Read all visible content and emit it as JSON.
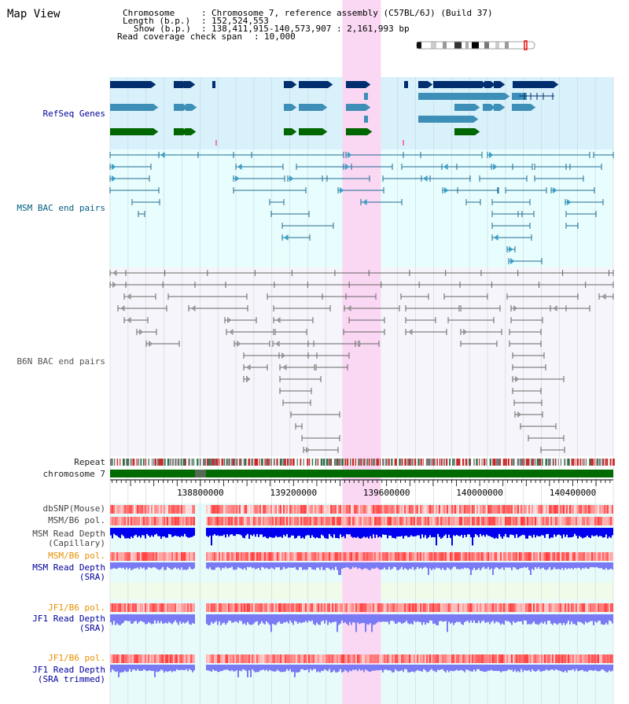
{
  "title": "Map View",
  "info": {
    "chromosome_label": "Chromosome",
    "chromosome_value": "Chromosome 7, reference assembly (C57BL/6J) (Build 37)",
    "length_label": "Length (b.p.)",
    "length_value": "152,524,553",
    "show_label": "Show (b.p.)",
    "show_value": "138,411,915-140,573,907 : 2,161,993 bp",
    "coverage_label": "Read coverage check span",
    "coverage_value": "10,000"
  },
  "track_labels": {
    "refseq": "RefSeq Genes",
    "msm_bac": "MSM BAC end pairs",
    "b6n_bac": "B6N BAC end pairs",
    "repeat": "Repeat",
    "chromosome": "chromosome 7",
    "dbsnp": "dbSNP(Mouse)",
    "msm_pol1": "MSM/B6 pol.",
    "msm_depth_cap_1": "MSM Read Depth",
    "msm_depth_cap_2": "(Capillary)",
    "msm_pol2": "MSM/B6 pol.",
    "msm_depth_sra_1": "MSM Read Depth",
    "msm_depth_sra_2": "(SRA)",
    "jf1_pol1": "JF1/B6 pol.",
    "jf1_depth_sra_1": "JF1 Read Depth",
    "jf1_depth_sra_2": "(SRA)",
    "jf1_pol2": "JF1/B6 pol.",
    "jf1_depth_trim_1": "JF1 Read Depth",
    "jf1_depth_trim_2": "(SRA trimmed)"
  },
  "axis": {
    "start_bp": 138411915,
    "end_bp": 140573907,
    "ticks": [
      "138800000",
      "139200000",
      "139600000",
      "140000000",
      "140400000"
    ],
    "tick_values": [
      138800000,
      139200000,
      139600000,
      140000000,
      140400000
    ]
  },
  "highlight": {
    "start_bp": 139410000,
    "end_bp": 139575000
  },
  "colors": {
    "refseq_bg": "#d9f1fb",
    "msm_bg": "#e8fdfd",
    "b6n_bg": "#f5f5fb",
    "highlight": "#fad7f3",
    "refseq_dark": "#002e6e",
    "refseq_mid": "#3e8fb7",
    "refseq_green": "#006600",
    "msm_bac": "#1f6a93",
    "b6n_bac": "#666666",
    "chromosome_bar": "#006b00",
    "capillary_depth": "#0000ee",
    "sra_depth": "#7a7af5",
    "label_blue": "#00009b",
    "label_teal": "#005d80",
    "label_orange": "#e89000",
    "label_gray": "#333333"
  }
}
